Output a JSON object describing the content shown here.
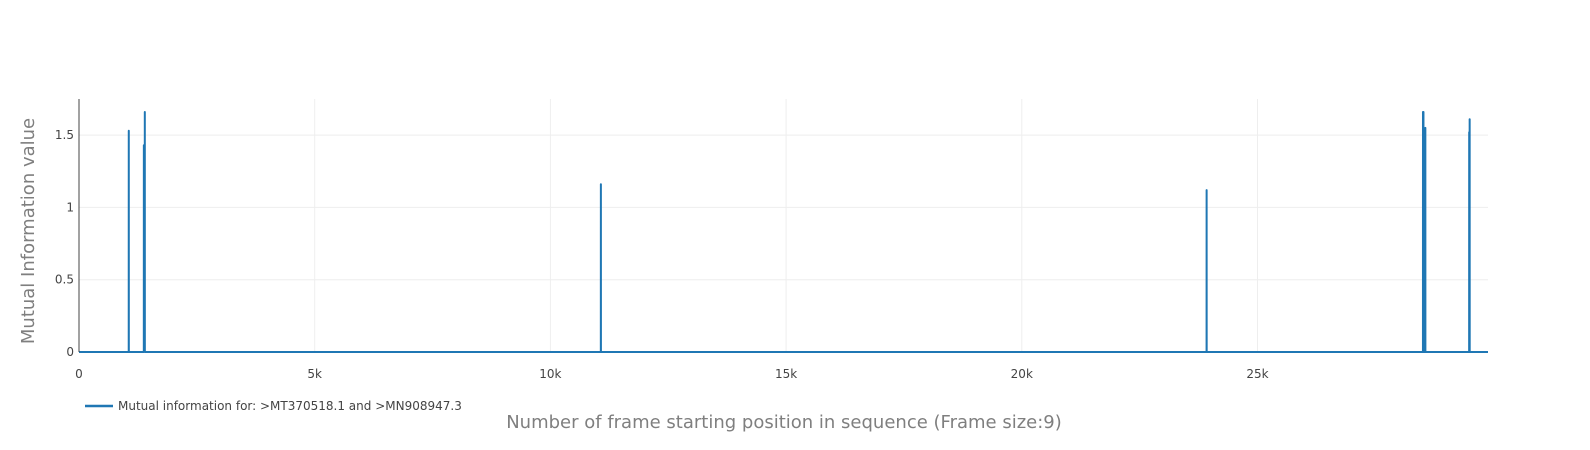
{
  "chart_data": {
    "type": "line",
    "title": "",
    "xlabel": "Number of frame starting position in sequence (Frame size:9)",
    "ylabel": "Mutual Information value",
    "xlim": [
      0,
      29890
    ],
    "ylim": [
      0,
      1.75
    ],
    "x_ticks": [
      0,
      5000,
      10000,
      15000,
      20000,
      25000
    ],
    "x_tick_labels": [
      "0",
      "5k",
      "10k",
      "15k",
      "20k",
      "25k"
    ],
    "y_ticks": [
      0,
      0.5,
      1,
      1.5
    ],
    "y_tick_labels": [
      "0",
      "0.5",
      "1",
      "1.5"
    ],
    "grid": true,
    "legend_position": "bottom-left",
    "colors": {
      "series": "#1f77b4",
      "grid": "#eeeeee",
      "axis": "#444444"
    },
    "series": [
      {
        "name": "Mutual information for: >MT370518.1 and >MN908947.3",
        "x": [
          0,
          1055,
          1056,
          1057,
          1375,
          1376,
          1395,
          1396,
          1397,
          11070,
          11071,
          11072,
          23920,
          23921,
          23922,
          28510,
          28511,
          28520,
          28521,
          28522,
          28560,
          28561,
          28562,
          29490,
          29491,
          29500,
          29501,
          29502,
          29890
        ],
        "y": [
          0,
          0,
          1.53,
          0,
          0,
          1.43,
          0,
          1.66,
          0,
          0,
          1.16,
          0,
          0,
          1.12,
          0,
          0,
          1.66,
          0,
          1.66,
          0,
          0,
          1.55,
          0,
          0,
          1.52,
          0,
          1.61,
          0,
          0
        ]
      }
    ]
  }
}
